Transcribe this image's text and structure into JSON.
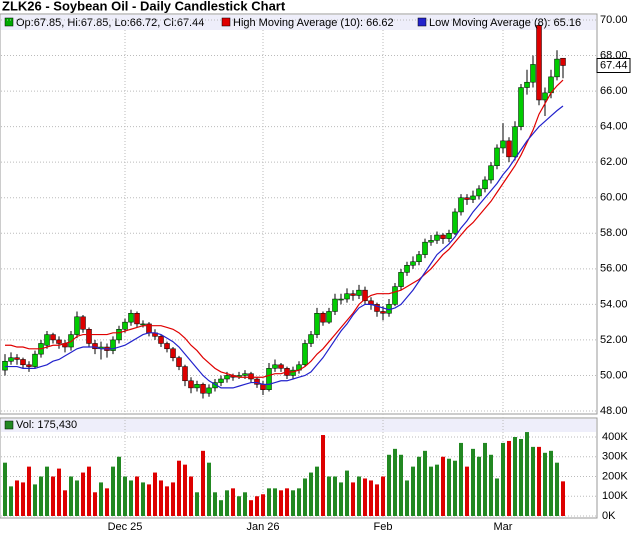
{
  "chart_data": [
    {
      "type": "candlestick",
      "title": "ZLK26 - Soybean Oil - Daily Candlestick Chart",
      "ohlc_legend": "Op:67.85, Hi:67.85, Lo:66.72, Cl:67.44",
      "up_color": "#00cc00",
      "down_color": "#dd0000",
      "categories": [
        null,
        null,
        null,
        null,
        null,
        null,
        null,
        null,
        null,
        null,
        null,
        null,
        null,
        null,
        null,
        null,
        null,
        null,
        null,
        null,
        "Dec 25",
        null,
        null,
        null,
        null,
        null,
        null,
        null,
        null,
        null,
        null,
        null,
        null,
        null,
        null,
        null,
        null,
        null,
        null,
        null,
        null,
        null,
        null,
        "Jan 26",
        null,
        null,
        null,
        null,
        null,
        null,
        null,
        null,
        null,
        null,
        null,
        null,
        null,
        null,
        null,
        null,
        null,
        null,
        null,
        "Feb",
        null,
        null,
        null,
        null,
        null,
        null,
        null,
        null,
        null,
        null,
        null,
        null,
        null,
        null,
        null,
        null,
        null,
        null,
        null,
        "Mar",
        null,
        null,
        null,
        null,
        null,
        null,
        null,
        null,
        null,
        null
      ],
      "ohlc": [
        [
          50.3,
          51.2,
          50.0,
          50.8
        ],
        [
          50.8,
          51.3,
          50.6,
          51.0
        ],
        [
          51.0,
          51.2,
          50.6,
          50.9
        ],
        [
          50.9,
          51.0,
          50.4,
          50.6
        ],
        [
          50.6,
          50.8,
          50.2,
          50.5
        ],
        [
          50.5,
          51.4,
          50.4,
          51.2
        ],
        [
          51.2,
          52.0,
          51.0,
          51.8
        ],
        [
          51.7,
          52.5,
          51.5,
          52.3
        ],
        [
          52.3,
          52.4,
          51.8,
          52.0
        ],
        [
          52.0,
          52.2,
          51.5,
          51.8
        ],
        [
          51.8,
          52.0,
          51.3,
          51.6
        ],
        [
          51.6,
          52.5,
          51.4,
          52.3
        ],
        [
          52.3,
          53.6,
          52.1,
          53.3
        ],
        [
          53.3,
          53.4,
          52.4,
          52.6
        ],
        [
          52.6,
          52.7,
          51.6,
          51.8
        ],
        [
          51.8,
          52.0,
          51.2,
          51.5
        ],
        [
          51.5,
          51.9,
          50.9,
          51.6
        ],
        [
          51.6,
          51.8,
          51.0,
          51.4
        ],
        [
          51.4,
          52.2,
          51.2,
          52.0
        ],
        [
          52.0,
          52.8,
          51.8,
          52.6
        ],
        [
          52.6,
          53.2,
          52.4,
          53.0
        ],
        [
          53.0,
          53.7,
          52.8,
          53.5
        ],
        [
          53.5,
          53.6,
          52.7,
          52.9
        ],
        [
          52.9,
          53.1,
          52.7,
          52.9
        ],
        [
          52.9,
          53.0,
          52.2,
          52.4
        ],
        [
          52.4,
          52.6,
          52.0,
          52.2
        ],
        [
          52.2,
          52.3,
          51.6,
          51.8
        ],
        [
          51.8,
          51.9,
          51.3,
          51.5
        ],
        [
          51.5,
          51.6,
          50.8,
          51.0
        ],
        [
          51.0,
          51.1,
          50.3,
          50.5
        ],
        [
          50.5,
          50.6,
          49.4,
          49.7
        ],
        [
          49.7,
          49.9,
          49.0,
          49.3
        ],
        [
          49.3,
          49.7,
          49.1,
          49.5
        ],
        [
          49.5,
          49.6,
          48.7,
          49.0
        ],
        [
          49.0,
          49.5,
          48.8,
          49.3
        ],
        [
          49.3,
          49.8,
          49.1,
          49.6
        ],
        [
          49.6,
          50.0,
          49.4,
          49.8
        ],
        [
          49.8,
          50.2,
          49.6,
          50.0
        ],
        [
          50.0,
          50.1,
          49.7,
          49.9
        ],
        [
          49.9,
          50.2,
          49.8,
          50.0
        ],
        [
          50.0,
          50.3,
          49.8,
          50.1
        ],
        [
          50.1,
          50.2,
          49.6,
          49.8
        ],
        [
          49.8,
          49.9,
          49.3,
          49.5
        ],
        [
          49.5,
          49.7,
          48.9,
          49.2
        ],
        [
          49.2,
          50.7,
          49.1,
          50.4
        ],
        [
          50.4,
          50.9,
          50.2,
          50.6
        ],
        [
          50.6,
          50.7,
          50.2,
          50.4
        ],
        [
          50.4,
          50.5,
          49.8,
          50.0
        ],
        [
          50.0,
          50.5,
          49.8,
          50.3
        ],
        [
          50.3,
          50.8,
          50.1,
          50.6
        ],
        [
          50.6,
          52.0,
          50.5,
          51.8
        ],
        [
          51.8,
          52.5,
          51.6,
          52.3
        ],
        [
          52.3,
          53.8,
          52.1,
          53.5
        ],
        [
          53.5,
          53.6,
          52.8,
          53.0
        ],
        [
          53.0,
          53.8,
          52.9,
          53.6
        ],
        [
          53.6,
          54.6,
          53.4,
          54.3
        ],
        [
          54.3,
          54.6,
          54.0,
          54.3
        ],
        [
          54.3,
          54.9,
          54.1,
          54.6
        ],
        [
          54.6,
          54.8,
          54.2,
          54.5
        ],
        [
          54.5,
          55.1,
          54.3,
          54.8
        ],
        [
          54.8,
          55.0,
          54.0,
          54.2
        ],
        [
          54.2,
          54.4,
          53.7,
          54.0
        ],
        [
          54.0,
          54.1,
          53.3,
          53.6
        ],
        [
          53.6,
          53.9,
          53.1,
          53.5
        ],
        [
          53.5,
          54.3,
          53.3,
          54.0
        ],
        [
          54.0,
          55.2,
          53.9,
          55.0
        ],
        [
          55.0,
          56.0,
          54.8,
          55.8
        ],
        [
          55.8,
          56.4,
          55.6,
          56.2
        ],
        [
          56.2,
          56.7,
          56.0,
          56.4
        ],
        [
          56.4,
          57.0,
          56.2,
          56.8
        ],
        [
          56.8,
          57.7,
          56.6,
          57.5
        ],
        [
          57.5,
          57.9,
          57.3,
          57.6
        ],
        [
          57.6,
          58.1,
          57.4,
          57.9
        ],
        [
          57.9,
          58.0,
          57.4,
          57.7
        ],
        [
          57.7,
          58.2,
          57.5,
          58.0
        ],
        [
          58.0,
          59.4,
          57.9,
          59.2
        ],
        [
          59.2,
          60.2,
          59.0,
          60.0
        ],
        [
          60.0,
          60.2,
          59.6,
          59.9
        ],
        [
          59.9,
          60.4,
          59.7,
          60.1
        ],
        [
          60.1,
          60.7,
          59.9,
          60.5
        ],
        [
          60.5,
          61.2,
          60.3,
          61.0
        ],
        [
          61.0,
          62.0,
          60.8,
          61.8
        ],
        [
          61.8,
          63.0,
          61.6,
          62.8
        ],
        [
          62.8,
          64.2,
          62.5,
          63.2
        ],
        [
          63.2,
          63.4,
          62.0,
          62.3
        ],
        [
          62.3,
          64.3,
          62.1,
          64.0
        ],
        [
          64.0,
          66.4,
          63.8,
          66.2
        ],
        [
          66.2,
          67.2,
          65.8,
          66.5
        ],
        [
          66.5,
          68.0,
          66.2,
          67.5
        ],
        [
          69.7,
          69.8,
          65.2,
          65.5
        ],
        [
          65.5,
          66.2,
          64.6,
          65.9
        ],
        [
          65.9,
          67.2,
          65.6,
          66.8
        ],
        [
          66.8,
          68.3,
          66.6,
          67.8
        ],
        [
          67.85,
          67.85,
          66.72,
          67.44
        ]
      ],
      "series": [
        {
          "name": "High Moving Average (10): 66.62",
          "color": "#e00000",
          "values": [
            51.7,
            51.7,
            51.6,
            51.6,
            51.5,
            51.5,
            51.5,
            51.6,
            51.7,
            51.7,
            51.8,
            51.9,
            52.2,
            52.3,
            52.3,
            52.3,
            52.3,
            52.3,
            52.4,
            52.4,
            52.5,
            52.6,
            52.7,
            52.8,
            52.8,
            52.8,
            52.8,
            52.7,
            52.6,
            52.4,
            52.1,
            51.7,
            51.4,
            51.0,
            50.7,
            50.4,
            50.2,
            50.1,
            50.0,
            49.9,
            49.9,
            49.9,
            49.9,
            49.9,
            50.0,
            50.1,
            50.1,
            50.2,
            50.2,
            50.3,
            50.5,
            50.8,
            51.2,
            51.5,
            51.9,
            52.3,
            52.7,
            53.1,
            53.5,
            54.0,
            54.3,
            54.5,
            54.6,
            54.6,
            54.6,
            54.7,
            54.8,
            55.0,
            55.2,
            55.4,
            55.7,
            56.0,
            56.4,
            56.8,
            57.1,
            57.5,
            57.9,
            58.3,
            58.6,
            59.0,
            59.4,
            59.8,
            60.3,
            60.8,
            61.3,
            61.8,
            62.4,
            63.1,
            63.8,
            64.7,
            65.3,
            65.9,
            66.3,
            66.62
          ]
        },
        {
          "name": "Low Moving Average (8): 65.16",
          "color": "#2222cc",
          "values": [
            50.5,
            50.5,
            50.5,
            50.4,
            50.4,
            50.4,
            50.5,
            50.6,
            50.8,
            50.9,
            51.1,
            51.3,
            51.5,
            51.6,
            51.6,
            51.6,
            51.5,
            51.5,
            51.5,
            51.6,
            51.7,
            51.9,
            52.1,
            52.3,
            52.4,
            52.4,
            52.3,
            52.1,
            51.9,
            51.6,
            51.2,
            50.8,
            50.4,
            50.0,
            49.7,
            49.5,
            49.3,
            49.3,
            49.3,
            49.4,
            49.5,
            49.6,
            49.6,
            49.5,
            49.5,
            49.6,
            49.7,
            49.7,
            49.8,
            49.9,
            50.0,
            50.2,
            50.6,
            51.0,
            51.5,
            52.0,
            52.5,
            52.9,
            53.4,
            53.8,
            54.0,
            54.0,
            53.9,
            53.8,
            53.7,
            53.8,
            54.0,
            54.4,
            54.8,
            55.3,
            55.8,
            56.3,
            56.8,
            57.1,
            57.4,
            57.8,
            58.3,
            58.7,
            59.2,
            59.6,
            60.0,
            60.4,
            60.8,
            61.3,
            61.7,
            62.2,
            62.7,
            63.2,
            63.6,
            64.0,
            64.3,
            64.6,
            64.9,
            65.16
          ]
        }
      ],
      "ylim": [
        48,
        70
      ],
      "yticks": [
        {
          "value": 48,
          "label": "48.00"
        },
        {
          "value": 50,
          "label": "50.00"
        },
        {
          "value": 52,
          "label": "52.00"
        },
        {
          "value": 54,
          "label": "54.00"
        },
        {
          "value": 56,
          "label": "56.00"
        },
        {
          "value": 58,
          "label": "58.00"
        },
        {
          "value": 60,
          "label": "60.00"
        },
        {
          "value": 62,
          "label": "62.00"
        },
        {
          "value": 64,
          "label": "64.00"
        },
        {
          "value": 66,
          "label": "66.00"
        },
        {
          "value": 68,
          "label": "68.00"
        },
        {
          "value": 70,
          "label": "70.00"
        }
      ],
      "grid": true
    },
    {
      "type": "volume",
      "legend": "Vol: 175,430",
      "color": "#228822",
      "values": [
        270000,
        150000,
        180000,
        170000,
        250000,
        160000,
        200000,
        250000,
        200000,
        240000,
        130000,
        200000,
        180000,
        220000,
        250000,
        120000,
        170000,
        140000,
        250000,
        300000,
        200000,
        180000,
        200000,
        170000,
        160000,
        220000,
        180000,
        150000,
        170000,
        280000,
        260000,
        200000,
        120000,
        330000,
        270000,
        120000,
        80000,
        130000,
        140000,
        100000,
        120000,
        80000,
        100000,
        110000,
        140000,
        140000,
        130000,
        140000,
        130000,
        140000,
        190000,
        220000,
        250000,
        410000,
        200000,
        200000,
        170000,
        230000,
        170000,
        200000,
        190000,
        180000,
        160000,
        200000,
        310000,
        340000,
        310000,
        180000,
        250000,
        300000,
        330000,
        250000,
        260000,
        300000,
        290000,
        280000,
        370000,
        250000,
        340000,
        300000,
        370000,
        310000,
        190000,
        370000,
        380000,
        400000,
        390000,
        425000,
        350000,
        350000,
        320000,
        330000,
        270000,
        175430
      ],
      "ylim": [
        0,
        500000
      ],
      "yticks": [
        {
          "value": 0,
          "label": "0K"
        },
        {
          "value": 100000,
          "label": "100K"
        },
        {
          "value": 200000,
          "label": "200K"
        },
        {
          "value": 300000,
          "label": "300K"
        },
        {
          "value": 400000,
          "label": "400K"
        }
      ]
    }
  ]
}
